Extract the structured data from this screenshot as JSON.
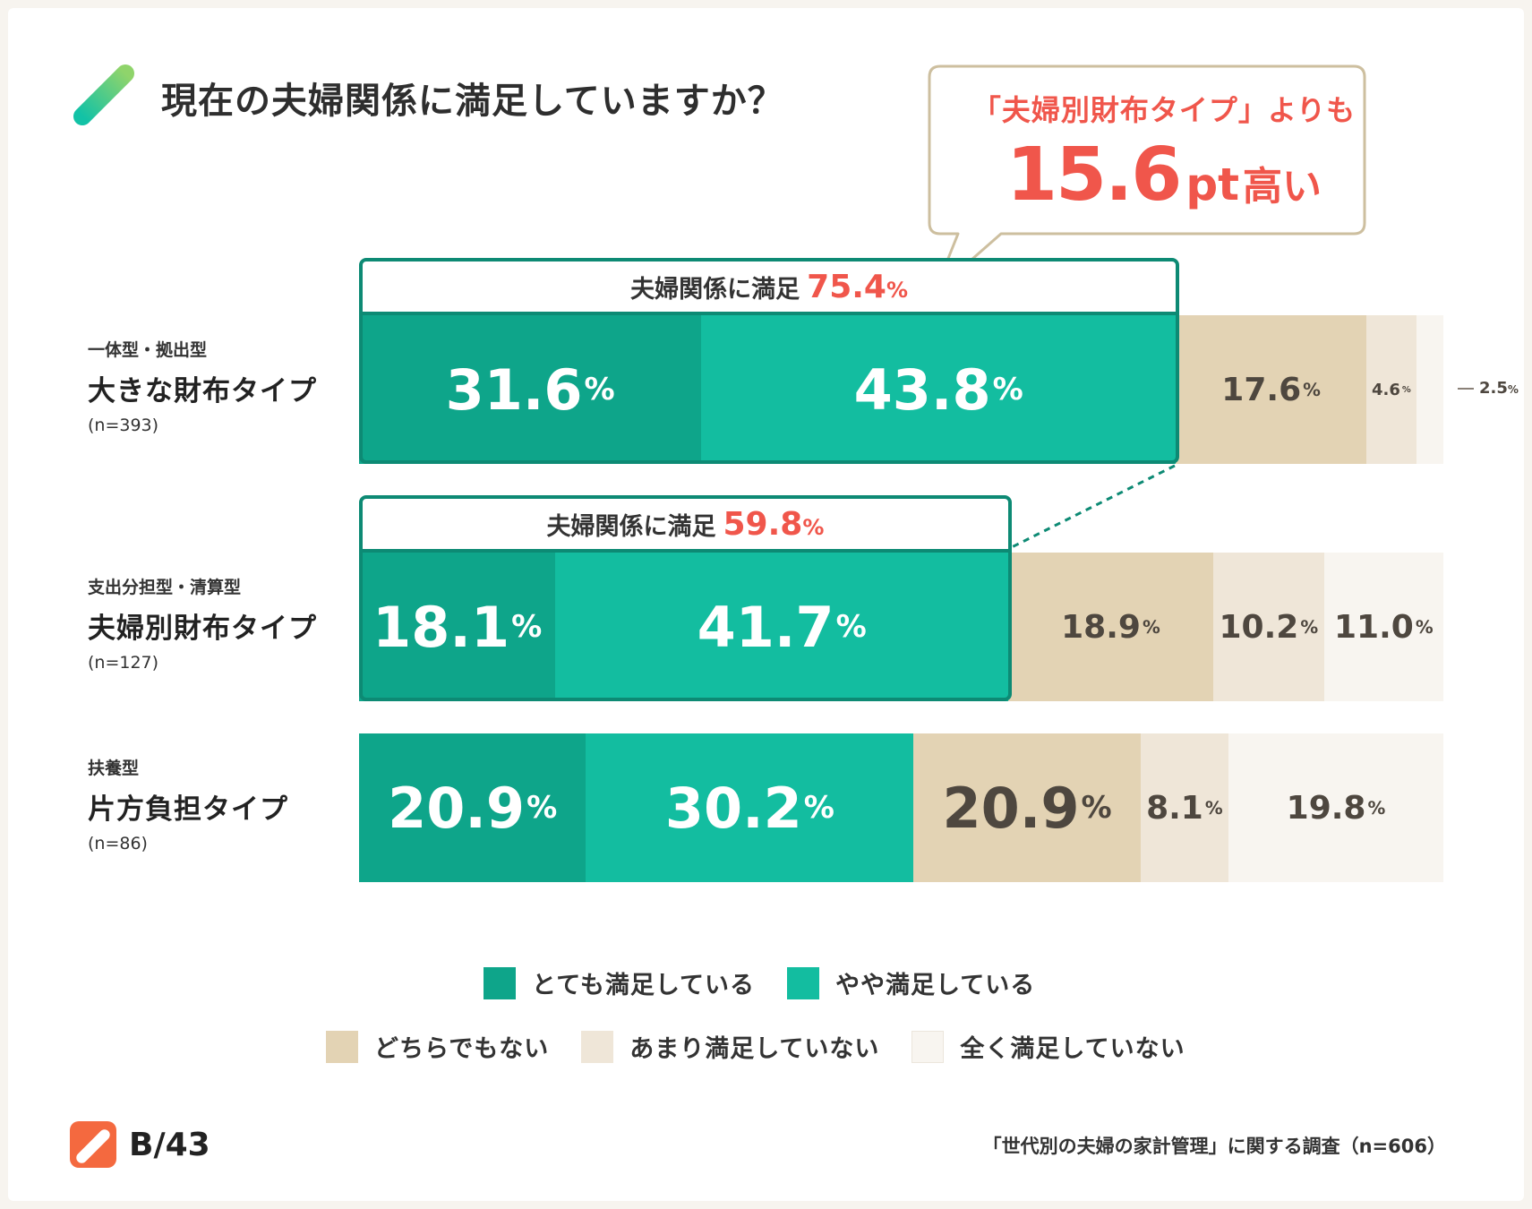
{
  "title": "現在の夫婦関係に満足していますか？",
  "callout": {
    "line1": "「夫婦別財布タイプ」よりも",
    "value": "15.6",
    "unit": "pt",
    "suffix": "高い"
  },
  "satisfied_prefix": "夫婦関係に満足",
  "percent_sign": "%",
  "chart_data": {
    "type": "bar",
    "orientation": "horizontal-stacked-100",
    "categories": [
      "大きな財布タイプ",
      "夫婦別財布タイプ",
      "片方負担タイプ"
    ],
    "category_groups": [
      "一体型・拠出型",
      "支出分担型・清算型",
      "扶養型"
    ],
    "sample_sizes": [
      "(n=393)",
      "(n=127)",
      "(n=86)"
    ],
    "series": [
      {
        "name": "とても満足している",
        "values": [
          31.6,
          18.1,
          20.9
        ],
        "color": "#0ea58a"
      },
      {
        "name": "やや満足している",
        "values": [
          43.8,
          41.7,
          30.2
        ],
        "color": "#13bda0"
      },
      {
        "name": "どちらでもない",
        "values": [
          17.6,
          18.9,
          20.9
        ],
        "color": "#e3d3b4"
      },
      {
        "name": "あまり満足していない",
        "values": [
          4.6,
          10.2,
          8.1
        ],
        "color": "#efe6d8"
      },
      {
        "name": "全く満足していない",
        "values": [
          2.5,
          11.0,
          19.8
        ],
        "color": "#f8f5f0"
      }
    ],
    "satisfied_totals": [
      "75.4",
      "59.8",
      null
    ],
    "value_labels": [
      [
        "31.6",
        "43.8",
        "17.6",
        "4.6",
        "2.5"
      ],
      [
        "18.1",
        "41.7",
        "18.9",
        "10.2",
        "11.0"
      ],
      [
        "20.9",
        "30.2",
        "20.9",
        "8.1",
        "19.8"
      ]
    ],
    "legend_placement": "bottom"
  },
  "brand": {
    "logo_text": "B/43",
    "accent": "#f4693f"
  },
  "source": "「世代別の夫婦の家計管理」に関する調査（n=606）"
}
